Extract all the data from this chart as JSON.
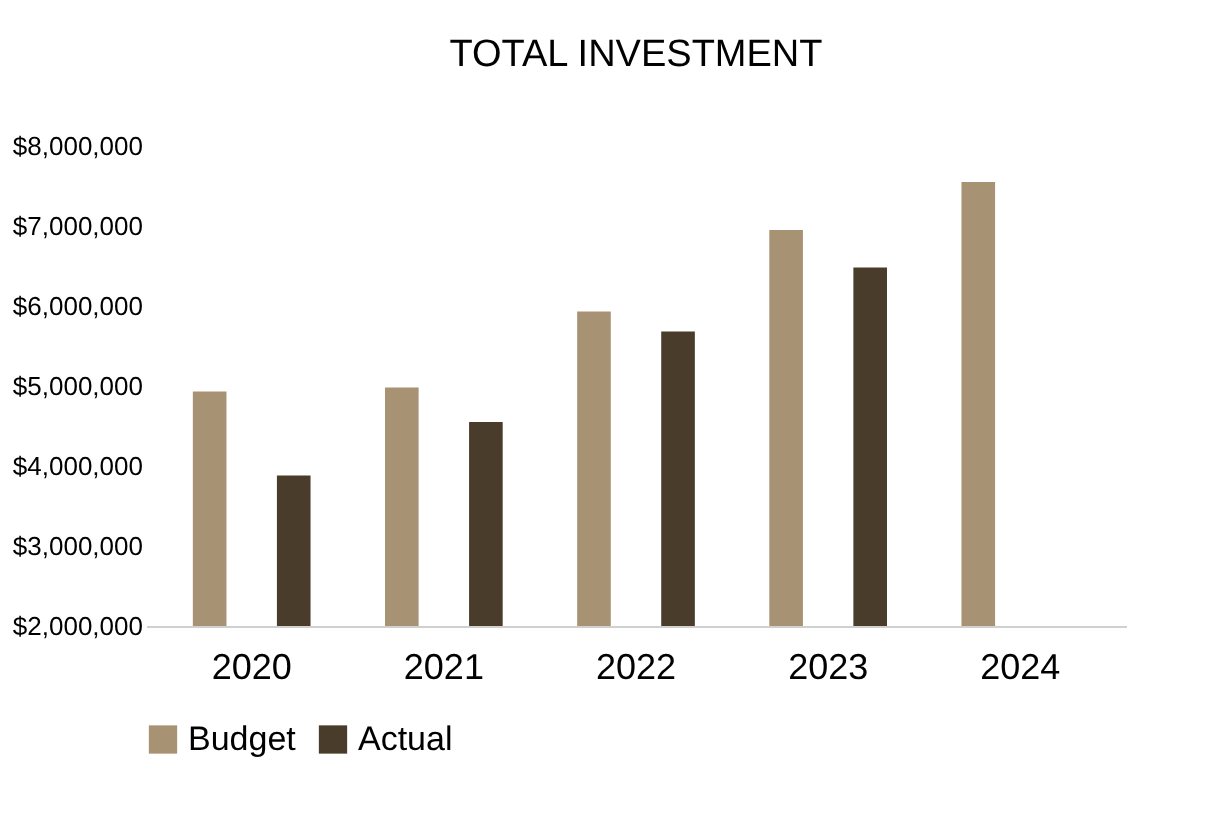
{
  "chart_data": {
    "type": "bar",
    "title": "TOTAL INVESTMENT",
    "categories": [
      "2020",
      "2021",
      "2022",
      "2023",
      "2024"
    ],
    "series": [
      {
        "name": "Budget",
        "color": "#a89274",
        "values": [
          4930000,
          4980000,
          5930000,
          6950000,
          7550000
        ]
      },
      {
        "name": "Actual",
        "color": "#4a3c2a",
        "values": [
          3880000,
          4550000,
          5680000,
          6480000,
          null
        ]
      }
    ],
    "ylim": [
      2000000,
      8000000
    ],
    "yticks": [
      {
        "value": 2000000,
        "label": "$2,000,000"
      },
      {
        "value": 3000000,
        "label": "$3,000,000"
      },
      {
        "value": 4000000,
        "label": "$4,000,000"
      },
      {
        "value": 5000000,
        "label": "$5,000,000"
      },
      {
        "value": 6000000,
        "label": "$6,000,000"
      },
      {
        "value": 7000000,
        "label": "$7,000,000"
      },
      {
        "value": 8000000,
        "label": "$8,000,000"
      }
    ],
    "grid": false,
    "legend": "bottom"
  }
}
